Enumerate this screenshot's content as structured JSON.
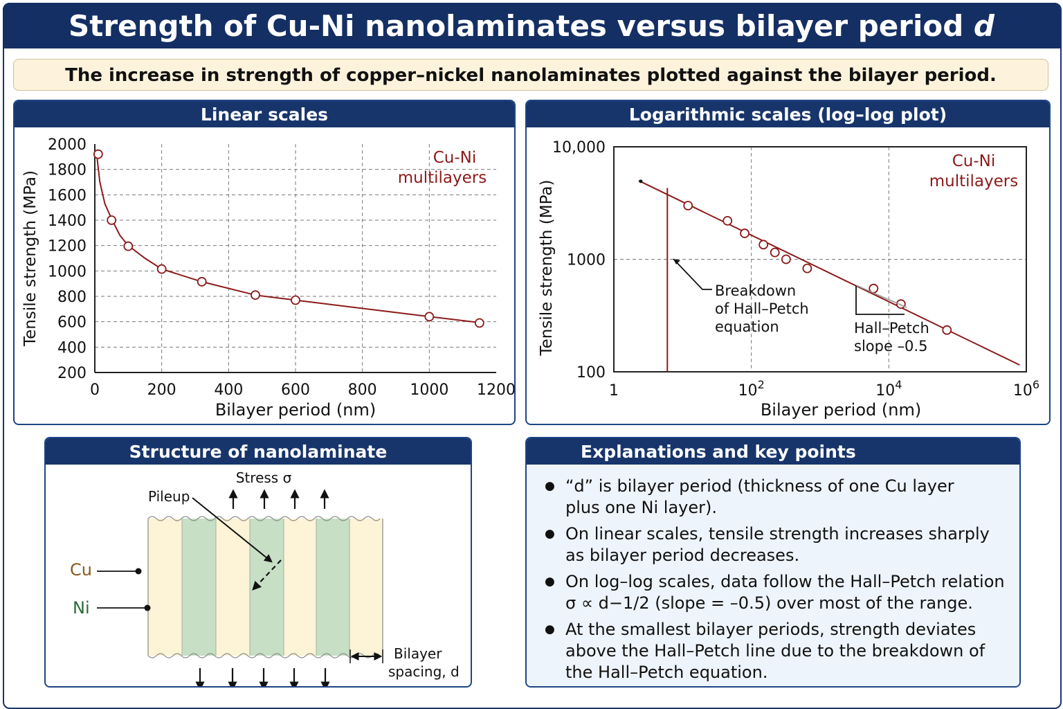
{
  "header": {
    "title": "Strength of Cu-Ni nanolaminates versus bilayer period",
    "title_symbol": "d",
    "subtitle": "The increase in strength of copper–nickel nanolaminates plotted against the bilayer period."
  },
  "colors": {
    "navy": "#17356b",
    "data_red": "#8b1a1a",
    "cu_fill": "#fdf3d6",
    "ni_fill": "#c7dfc5"
  },
  "chart_data": [
    {
      "type": "line",
      "panel_title": "Linear scales",
      "xlabel": "Bilayer period (nm)",
      "ylabel": "Tensile strength (MPa)",
      "xlim": [
        0,
        1200
      ],
      "ylim": [
        200,
        2000
      ],
      "xticks": [
        0,
        200,
        400,
        600,
        800,
        1000,
        1200
      ],
      "yticks": [
        200,
        400,
        600,
        800,
        1000,
        1200,
        1400,
        1600,
        1800,
        2000
      ],
      "grid": true,
      "series_label": [
        "Cu-Ni",
        "multilayers"
      ],
      "curve": {
        "x": [
          5,
          15,
          30,
          50,
          75,
          100,
          150,
          200,
          320,
          480,
          600,
          1000,
          1160
        ],
        "y": [
          1930,
          1700,
          1530,
          1410,
          1280,
          1200,
          1100,
          1015,
          915,
          810,
          770,
          640,
          590
        ]
      },
      "points": {
        "x": [
          10,
          50,
          100,
          200,
          320,
          480,
          600,
          1000,
          1150
        ],
        "y": [
          1920,
          1400,
          1195,
          1015,
          915,
          810,
          770,
          640,
          590
        ]
      }
    },
    {
      "type": "line",
      "panel_title": "Logarithmic scales (log–log plot)",
      "scale": "log-log",
      "xlabel": "Bilayer period (nm)",
      "ylabel": "Tensile strength (MPa)",
      "xlim": [
        1,
        1000000
      ],
      "ylim": [
        100,
        10000
      ],
      "xticks": [
        {
          "base": "1",
          "exp": ""
        },
        {
          "base": "10",
          "exp": "2"
        },
        {
          "base": "10",
          "exp": "4"
        },
        {
          "base": "10",
          "exp": "6"
        }
      ],
      "yticks": [
        "100",
        "1000",
        "10,000"
      ],
      "grid": true,
      "series_label": [
        "Cu-Ni",
        "multilayers"
      ],
      "fit_line": {
        "x": [
          2.3,
          800000
        ],
        "y": [
          5000,
          115
        ]
      },
      "points": {
        "x": [
          12,
          45,
          80,
          150,
          220,
          320,
          650,
          6000,
          15000,
          70000
        ],
        "y": [
          3000,
          2200,
          1700,
          1350,
          1150,
          1000,
          830,
          550,
          400,
          235
        ]
      },
      "breakdown_x": 6,
      "annotations": {
        "breakdown": [
          "Breakdown",
          "of Hall–Petch",
          "equation"
        ],
        "slope": [
          "Hall–Petch",
          "slope –0.5"
        ]
      }
    }
  ],
  "structure": {
    "title": "Structure of nanolaminate",
    "stress_label": "Stress σ",
    "pileup_label": "Pileup",
    "cu_label": "Cu",
    "ni_label": "Ni",
    "spacing_label": [
      "Bilayer",
      "spacing, d"
    ]
  },
  "key_points": {
    "title": "Explanations and key points",
    "items": [
      {
        "lines": [
          "“d” is bilayer period (thickness of one Cu layer",
          "plus one Ni layer)."
        ]
      },
      {
        "lines": [
          "On linear scales, tensile strength increases sharply",
          "as bilayer period decreases."
        ]
      },
      {
        "lines": [
          "On log–log scales, data follow the Hall–Petch relation",
          "σ ∝ d−1/2 (slope = –0.5) over most of the range."
        ]
      },
      {
        "lines": [
          "At the smallest bilayer periods, strength deviates",
          "above the Hall–Petch line due to the breakdown of",
          "the Hall–Petch equation."
        ]
      }
    ]
  }
}
